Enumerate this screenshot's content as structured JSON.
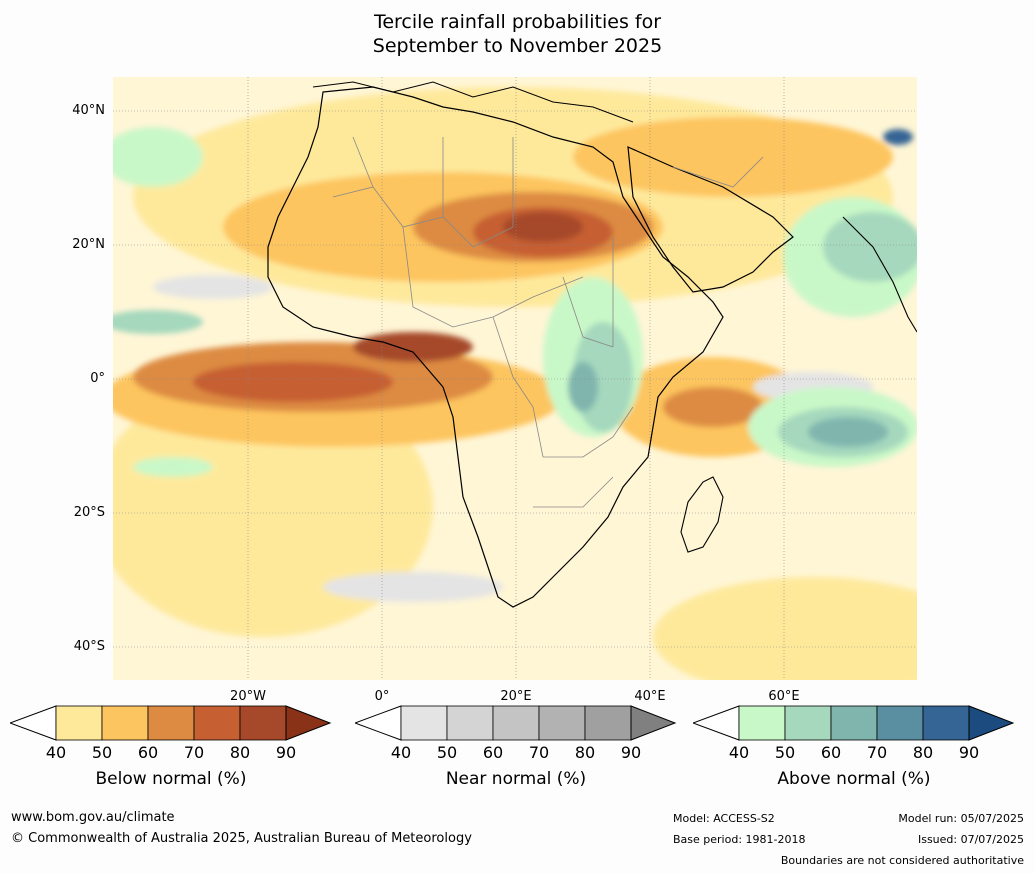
{
  "title": {
    "line1": "Tercile rainfall probabilities for",
    "line2": "September to November 2025"
  },
  "lat_labels": [
    "40°N",
    "20°N",
    "0°",
    "20°S",
    "40°S"
  ],
  "lon_labels": [
    "20°W",
    "0°",
    "20°E",
    "40°E",
    "60°E"
  ],
  "colorbars": [
    {
      "name": "below",
      "title": "Below normal (%)",
      "ticks": [
        "40",
        "50",
        "60",
        "70",
        "80",
        "90"
      ],
      "colors": [
        "#ffffff",
        "#fee99b",
        "#fdc55f",
        "#dd8b43",
        "#c65f32",
        "#a6482a",
        "#8a3218"
      ]
    },
    {
      "name": "near",
      "title": "Near normal (%)",
      "ticks": [
        "40",
        "50",
        "60",
        "70",
        "80",
        "90"
      ],
      "colors": [
        "#ffffff",
        "#e4e4e4",
        "#d4d4d4",
        "#c4c4c4",
        "#b2b2b2",
        "#a0a0a0",
        "#808080"
      ]
    },
    {
      "name": "above",
      "title": "Above normal (%)",
      "ticks": [
        "40",
        "50",
        "60",
        "70",
        "80",
        "90"
      ],
      "colors": [
        "#ffffff",
        "#c9f8c8",
        "#a5d8bd",
        "#80b5ae",
        "#5a8fa2",
        "#356594",
        "#1c4b80"
      ]
    }
  ],
  "footer": {
    "url": "www.bom.gov.au/climate",
    "copyright": "© Commonwealth of Australia 2025, Australian Bureau of Meteorology",
    "model": "Model: ACCESS-S2",
    "base_period": "Base period: 1981-2018",
    "model_run": "Model run: 05/07/2025",
    "issued": "Issued: 07/07/2025",
    "disclaimer": "Boundaries are not considered authoritative"
  }
}
